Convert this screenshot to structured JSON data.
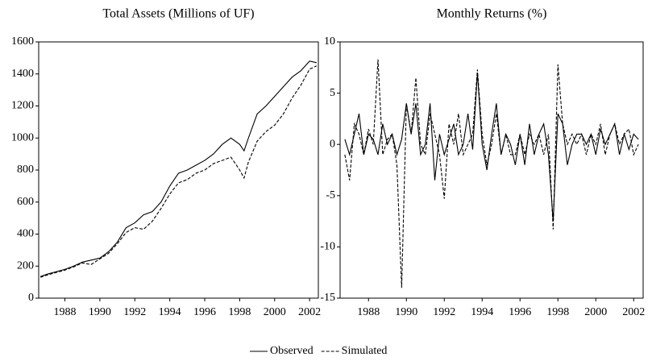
{
  "chart_data": [
    {
      "type": "line",
      "title": "Total Assets (Millions of UF)",
      "xlim": [
        1986.5,
        2002.5
      ],
      "xticks": [
        1988,
        1990,
        1992,
        1994,
        1996,
        1998,
        2000,
        2002
      ],
      "ylim": [
        0,
        1600
      ],
      "yticks": [
        0,
        200,
        400,
        600,
        800,
        1000,
        1200,
        1400,
        1600
      ],
      "series": [
        {
          "name": "Observed",
          "color": "#000000",
          "line_style": "solid",
          "x": [
            1986.6,
            1987,
            1988,
            1988.5,
            1989,
            1990,
            1990.5,
            1991,
            1991.5,
            1992,
            1992.5,
            1993,
            1993.5,
            1994,
            1994.5,
            1995,
            1995.5,
            1996,
            1996.5,
            1997,
            1997.5,
            1998,
            1998.25,
            1998.5,
            1999,
            1999.5,
            2000,
            2000.5,
            2001,
            2001.5,
            2002,
            2002.4
          ],
          "values": [
            135,
            150,
            180,
            200,
            225,
            250,
            290,
            350,
            440,
            470,
            520,
            540,
            600,
            700,
            780,
            800,
            830,
            860,
            900,
            960,
            1000,
            960,
            920,
            1000,
            1150,
            1200,
            1260,
            1320,
            1380,
            1420,
            1480,
            1470
          ]
        },
        {
          "name": "Simulated",
          "color": "#000000",
          "line_style": "dashed",
          "x": [
            1986.6,
            1987,
            1988,
            1988.5,
            1989,
            1989.5,
            1990,
            1990.5,
            1991,
            1991.5,
            1992,
            1992.5,
            1993,
            1993.5,
            1994,
            1994.5,
            1995,
            1995.5,
            1996,
            1996.5,
            1997,
            1997.5,
            1998,
            1998.25,
            1998.5,
            1999,
            1999.5,
            2000,
            2000.5,
            2001,
            2001.5,
            2002,
            2002.4
          ],
          "values": [
            130,
            145,
            175,
            195,
            220,
            210,
            245,
            280,
            340,
            410,
            440,
            430,
            480,
            560,
            650,
            720,
            740,
            780,
            800,
            840,
            860,
            880,
            800,
            750,
            850,
            980,
            1040,
            1080,
            1150,
            1250,
            1330,
            1430,
            1450
          ]
        }
      ]
    },
    {
      "type": "line",
      "title": "Monthly Returns (%)",
      "xlim": [
        1986.5,
        2002.5
      ],
      "xticks": [
        1988,
        1990,
        1992,
        1994,
        1996,
        1998,
        2000,
        2002
      ],
      "ylim": [
        -15,
        10
      ],
      "yticks": [
        -15,
        -10,
        -5,
        0,
        5,
        10
      ],
      "x": [
        1986.75,
        1987,
        1987.25,
        1987.5,
        1987.75,
        1988,
        1988.25,
        1988.5,
        1988.75,
        1989,
        1989.25,
        1989.5,
        1989.75,
        1990,
        1990.25,
        1990.5,
        1990.75,
        1991,
        1991.25,
        1991.5,
        1991.75,
        1992,
        1992.25,
        1992.5,
        1992.75,
        1993,
        1993.25,
        1993.5,
        1993.75,
        1994,
        1994.25,
        1994.5,
        1994.75,
        1995,
        1995.25,
        1995.5,
        1995.75,
        1996,
        1996.25,
        1996.5,
        1996.75,
        1997,
        1997.25,
        1997.5,
        1997.75,
        1998,
        1998.25,
        1998.5,
        1998.75,
        1999,
        1999.25,
        1999.5,
        1999.75,
        2000,
        2000.25,
        2000.5,
        2000.75,
        2001,
        2001.25,
        2001.5,
        2001.75,
        2002,
        2002.25
      ],
      "series": [
        {
          "name": "Observed",
          "color": "#000000",
          "line_style": "solid",
          "values": [
            0.5,
            -1,
            1,
            3,
            -1,
            1,
            0.5,
            -1,
            2,
            0,
            1,
            -1,
            0.5,
            4,
            1,
            4,
            -1,
            0,
            4,
            -3.5,
            1,
            -1,
            0.5,
            2,
            -1,
            0,
            3,
            -0.5,
            7,
            0,
            -2.5,
            1,
            4,
            -1,
            1,
            0,
            -2,
            1,
            -2,
            2,
            -1,
            1,
            2,
            -1,
            -7.5,
            3,
            2,
            -2,
            0,
            1,
            1,
            0,
            1,
            -1,
            1.5,
            0,
            1,
            2,
            -1,
            1,
            -0.5,
            1,
            0.5
          ]
        },
        {
          "name": "Simulated",
          "color": "#000000",
          "line_style": "dashed",
          "values": [
            -1,
            -3.5,
            2,
            1,
            -1,
            1.5,
            0,
            8.3,
            -1,
            0.5,
            1,
            -2,
            -14,
            4,
            1,
            6.5,
            0,
            -1,
            3,
            1,
            -1,
            -5.3,
            2,
            0,
            3,
            -1,
            0,
            1,
            7.3,
            1,
            -2,
            0,
            3,
            -1,
            1,
            -1,
            -1,
            1,
            -1,
            1,
            0,
            1,
            -1,
            1,
            -8.3,
            7.8,
            2,
            0,
            1,
            0,
            1,
            -1,
            1,
            0,
            2,
            -1,
            1,
            2,
            0,
            1,
            1.5,
            -1,
            0
          ]
        }
      ]
    }
  ]
}
